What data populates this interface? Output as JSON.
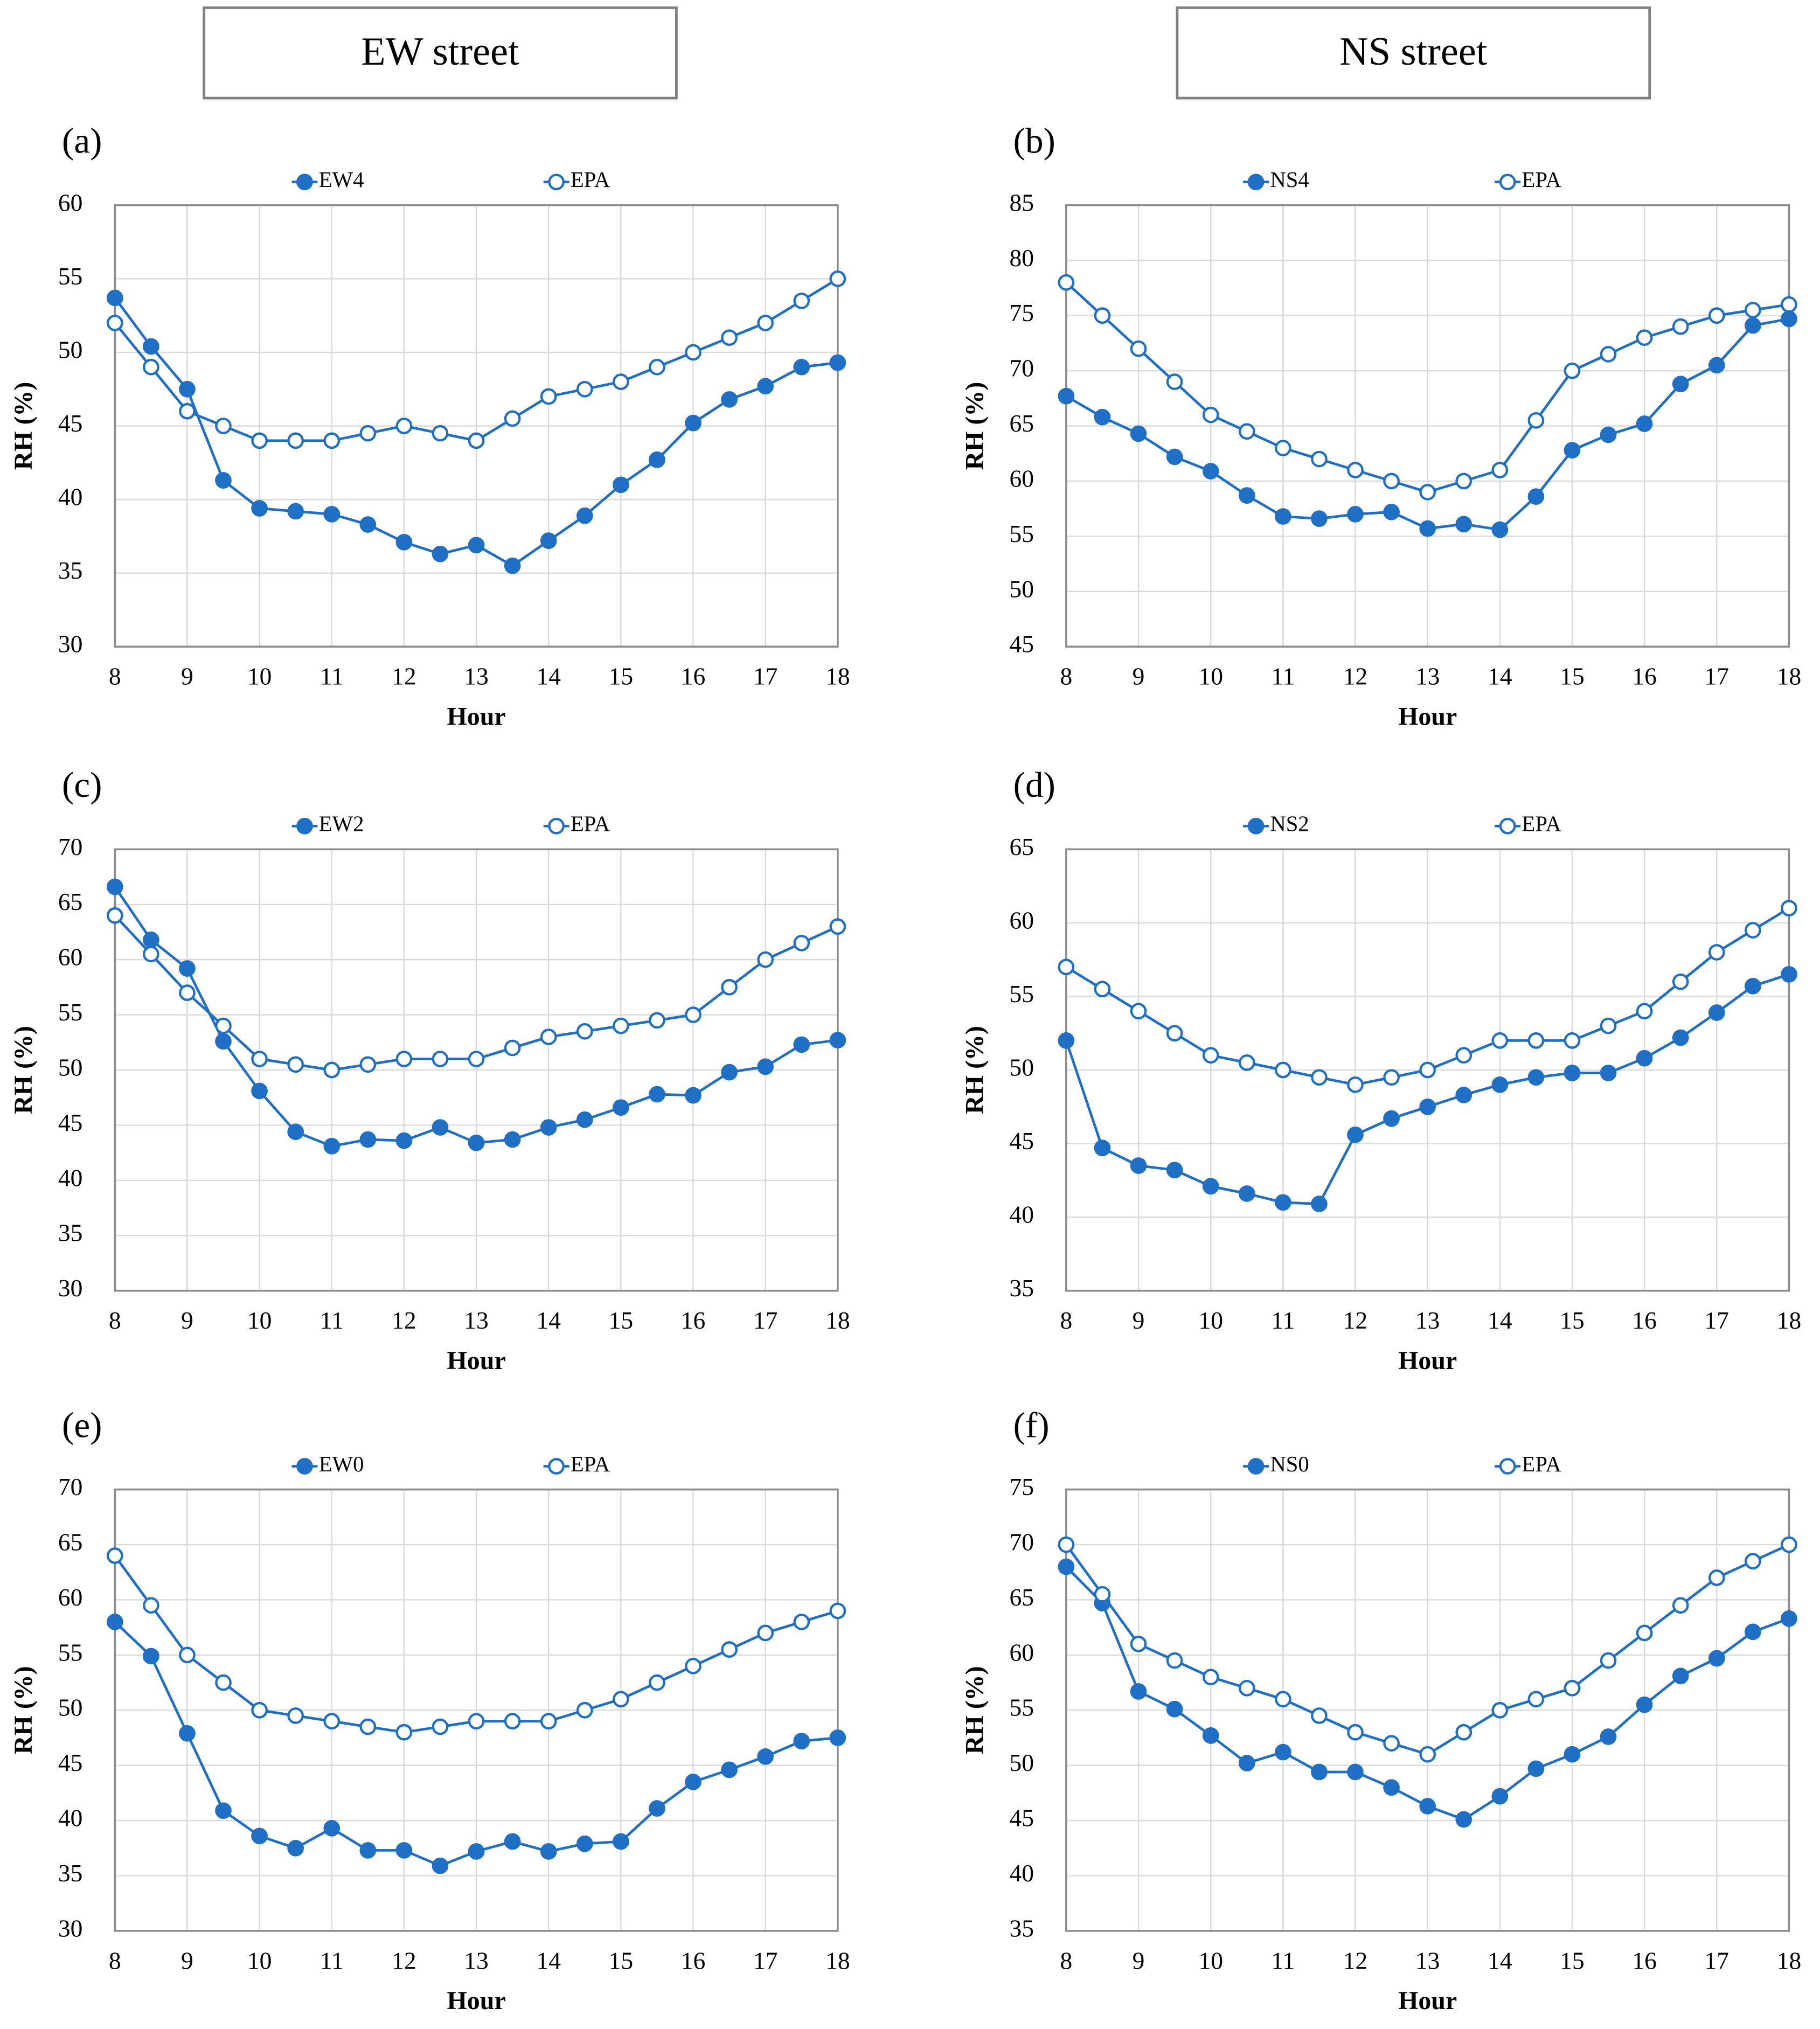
{
  "column_headers": [
    "EW street",
    "NS street"
  ],
  "chart_data": [
    {
      "type": "line",
      "panel_label": "(a)",
      "x_label": "Hour",
      "y_label": "RH (%)",
      "x": [
        8,
        8.5,
        9,
        9.5,
        10,
        10.5,
        11,
        11.5,
        12,
        12.5,
        13,
        13.5,
        14,
        14.5,
        15,
        15.5,
        16,
        16.5,
        17,
        17.5,
        18
      ],
      "xlim": [
        8,
        18
      ],
      "xticks": [
        8,
        9,
        10,
        11,
        12,
        13,
        14,
        15,
        16,
        17,
        18
      ],
      "ylim": [
        30,
        60
      ],
      "yticks": [
        30,
        35,
        40,
        45,
        50,
        55,
        60
      ],
      "grid": true,
      "series": [
        {
          "name": "EW4",
          "color": "#1f6fc5",
          "filled": true,
          "values": [
            53.7,
            50.4,
            47.5,
            41.3,
            39.4,
            39.2,
            39.0,
            38.3,
            37.1,
            36.3,
            36.9,
            35.5,
            37.2,
            38.9,
            41.0,
            42.7,
            45.2,
            46.8,
            47.7,
            49.0,
            49.3
          ]
        },
        {
          "name": "EPA",
          "color": "#1f6fc5",
          "filled": false,
          "values": [
            52,
            49,
            46,
            45,
            44,
            44,
            44,
            44.5,
            45,
            44.5,
            44,
            45.5,
            47,
            47.5,
            48,
            49,
            50,
            51,
            52,
            53.5,
            55
          ]
        }
      ]
    },
    {
      "type": "line",
      "panel_label": "(b)",
      "x_label": "Hour",
      "y_label": "RH (%)",
      "x": [
        8,
        8.5,
        9,
        9.5,
        10,
        10.5,
        11,
        11.5,
        12,
        12.5,
        13,
        13.5,
        14,
        14.5,
        15,
        15.5,
        16,
        16.5,
        17,
        17.5,
        18
      ],
      "xlim": [
        8,
        18
      ],
      "xticks": [
        8,
        9,
        10,
        11,
        12,
        13,
        14,
        15,
        16,
        17,
        18
      ],
      "ylim": [
        45,
        85
      ],
      "yticks": [
        45,
        50,
        55,
        60,
        65,
        70,
        75,
        80,
        85
      ],
      "grid": true,
      "series": [
        {
          "name": "NS4",
          "color": "#1f6fc5",
          "filled": true,
          "values": [
            67.7,
            65.8,
            64.3,
            62.2,
            60.9,
            58.7,
            56.8,
            56.6,
            57.0,
            57.2,
            55.7,
            56.1,
            55.6,
            58.6,
            62.8,
            64.2,
            65.2,
            68.8,
            70.5,
            74.1,
            74.7
          ]
        },
        {
          "name": "EPA",
          "color": "#1f6fc5",
          "filled": false,
          "values": [
            78,
            75,
            72,
            69,
            66,
            64.5,
            63,
            62,
            61,
            60,
            59,
            60,
            61,
            65.5,
            70,
            71.5,
            73,
            74,
            75,
            75.5,
            76
          ]
        }
      ]
    },
    {
      "type": "line",
      "panel_label": "(c)",
      "x_label": "Hour",
      "y_label": "RH (%)",
      "x": [
        8,
        8.5,
        9,
        9.5,
        10,
        10.5,
        11,
        11.5,
        12,
        12.5,
        13,
        13.5,
        14,
        14.5,
        15,
        15.5,
        16,
        16.5,
        17,
        17.5,
        18
      ],
      "xlim": [
        8,
        18
      ],
      "xticks": [
        8,
        9,
        10,
        11,
        12,
        13,
        14,
        15,
        16,
        17,
        18
      ],
      "ylim": [
        30,
        70
      ],
      "yticks": [
        30,
        35,
        40,
        45,
        50,
        55,
        60,
        65,
        70
      ],
      "grid": true,
      "series": [
        {
          "name": "EW2",
          "color": "#1f6fc5",
          "filled": true,
          "values": [
            66.6,
            61.8,
            59.2,
            52.6,
            48.1,
            44.4,
            43.1,
            43.7,
            43.6,
            44.8,
            43.4,
            43.7,
            44.8,
            45.5,
            46.6,
            47.8,
            47.7,
            49.8,
            50.3,
            52.3,
            52.7
          ]
        },
        {
          "name": "EPA",
          "color": "#1f6fc5",
          "filled": false,
          "values": [
            64,
            60.5,
            57,
            54,
            51,
            50.5,
            50,
            50.5,
            51,
            51,
            51,
            52,
            53,
            53.5,
            54,
            54.5,
            55,
            57.5,
            60,
            61.5,
            63
          ]
        }
      ]
    },
    {
      "type": "line",
      "panel_label": "(d)",
      "x_label": "Hour",
      "y_label": "RH (%)",
      "x": [
        8,
        8.5,
        9,
        9.5,
        10,
        10.5,
        11,
        11.5,
        12,
        12.5,
        13,
        13.5,
        14,
        14.5,
        15,
        15.5,
        16,
        16.5,
        17,
        17.5,
        18
      ],
      "xlim": [
        8,
        18
      ],
      "xticks": [
        8,
        9,
        10,
        11,
        12,
        13,
        14,
        15,
        16,
        17,
        18
      ],
      "ylim": [
        35,
        65
      ],
      "yticks": [
        35,
        40,
        45,
        50,
        55,
        60,
        65
      ],
      "grid": true,
      "series": [
        {
          "name": "NS2",
          "color": "#1f6fc5",
          "filled": true,
          "values": [
            52,
            44.7,
            43.5,
            43.2,
            42.1,
            41.6,
            41.0,
            40.9,
            45.6,
            46.7,
            47.5,
            48.3,
            49.0,
            49.5,
            49.8,
            49.8,
            50.8,
            52.2,
            53.9,
            55.7,
            56.5
          ]
        },
        {
          "name": "EPA",
          "color": "#1f6fc5",
          "filled": false,
          "values": [
            57,
            55.5,
            54,
            52.5,
            51,
            50.5,
            50,
            49.5,
            49,
            49.5,
            50,
            51,
            52,
            52,
            52,
            53,
            54,
            56,
            58,
            59.5,
            61
          ]
        }
      ]
    },
    {
      "type": "line",
      "panel_label": "(e)",
      "x_label": "Hour",
      "y_label": "RH (%)",
      "x": [
        8,
        8.5,
        9,
        9.5,
        10,
        10.5,
        11,
        11.5,
        12,
        12.5,
        13,
        13.5,
        14,
        14.5,
        15,
        15.5,
        16,
        16.5,
        17,
        17.5,
        18
      ],
      "xlim": [
        8,
        18
      ],
      "xticks": [
        8,
        9,
        10,
        11,
        12,
        13,
        14,
        15,
        16,
        17,
        18
      ],
      "ylim": [
        30,
        70
      ],
      "yticks": [
        30,
        35,
        40,
        45,
        50,
        55,
        60,
        65,
        70
      ],
      "grid": true,
      "series": [
        {
          "name": "EW0",
          "color": "#1f6fc5",
          "filled": true,
          "values": [
            58,
            54.9,
            47.9,
            40.9,
            38.6,
            37.5,
            39.3,
            37.3,
            37.3,
            35.9,
            37.2,
            38.1,
            37.2,
            37.9,
            38.1,
            41.1,
            43.5,
            44.6,
            45.8,
            47.2,
            47.5
          ]
        },
        {
          "name": "EPA",
          "color": "#1f6fc5",
          "filled": false,
          "values": [
            64,
            59.5,
            55,
            52.5,
            50,
            49.5,
            49,
            48.5,
            48,
            48.5,
            49,
            49,
            49,
            50,
            51,
            52.5,
            54,
            55.5,
            57,
            58,
            59
          ]
        }
      ]
    },
    {
      "type": "line",
      "panel_label": "(f)",
      "x_label": "Hour",
      "y_label": "RH (%)",
      "x": [
        8,
        8.5,
        9,
        9.5,
        10,
        10.5,
        11,
        11.5,
        12,
        12.5,
        13,
        13.5,
        14,
        14.5,
        15,
        15.5,
        16,
        16.5,
        17,
        17.5,
        18
      ],
      "xlim": [
        8,
        18
      ],
      "xticks": [
        8,
        9,
        10,
        11,
        12,
        13,
        14,
        15,
        16,
        17,
        18
      ],
      "ylim": [
        35,
        75
      ],
      "yticks": [
        35,
        40,
        45,
        50,
        55,
        60,
        65,
        70,
        75
      ],
      "grid": true,
      "series": [
        {
          "name": "NS0",
          "color": "#1f6fc5",
          "filled": true,
          "values": [
            68,
            64.7,
            56.7,
            55.1,
            52.7,
            50.2,
            51.2,
            49.4,
            49.4,
            48,
            46.3,
            45.1,
            47.2,
            49.7,
            51,
            52.6,
            55.5,
            58.1,
            59.7,
            62.1,
            63.3
          ]
        },
        {
          "name": "EPA",
          "color": "#1f6fc5",
          "filled": false,
          "values": [
            70,
            65.5,
            61,
            59.5,
            58,
            57,
            56,
            54.5,
            53,
            52,
            51,
            53,
            55,
            56,
            57,
            59.5,
            62,
            64.5,
            67,
            68.5,
            70
          ]
        }
      ]
    }
  ]
}
